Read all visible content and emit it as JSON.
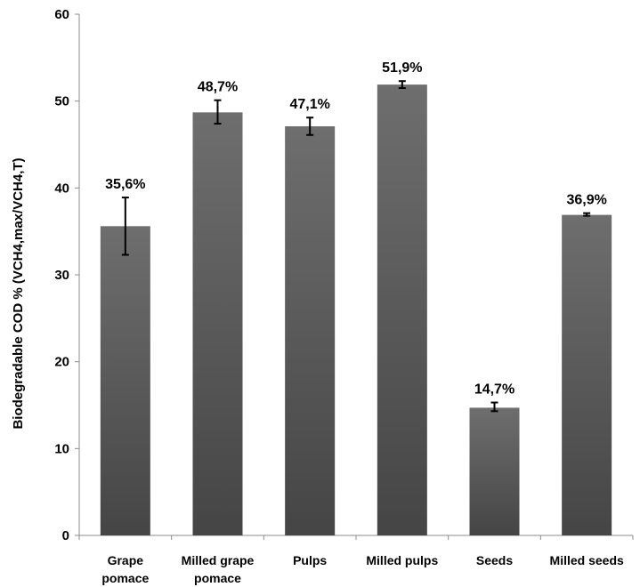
{
  "chart_data": {
    "type": "bar",
    "title": "",
    "xlabel": "",
    "ylabel": "Biodegradable COD % (VCH4,max/VCH4,T)",
    "ylim": [
      0,
      60
    ],
    "yticks": [
      0,
      10,
      20,
      30,
      40,
      50,
      60
    ],
    "grid": false,
    "legend": "none",
    "categories": [
      [
        "Grape",
        "pomace"
      ],
      [
        "Milled grape",
        "pomace"
      ],
      [
        "Pulps"
      ],
      [
        "Milled pulps"
      ],
      [
        "Seeds"
      ],
      [
        "Milled seeds"
      ]
    ],
    "values": [
      35.6,
      48.7,
      47.1,
      51.9,
      14.7,
      36.9
    ],
    "error_low": [
      32.3,
      47.4,
      46.1,
      51.5,
      14.3,
      36.8
    ],
    "error_high": [
      38.9,
      50.1,
      48.1,
      52.3,
      15.3,
      37.1
    ],
    "data_labels": [
      "35,6%",
      "48,7%",
      "47,1%",
      "51,9%",
      "14,7%",
      "36,9%"
    ],
    "bar_color_light": "#6e6e6e",
    "bar_color_dark": "#454545"
  }
}
